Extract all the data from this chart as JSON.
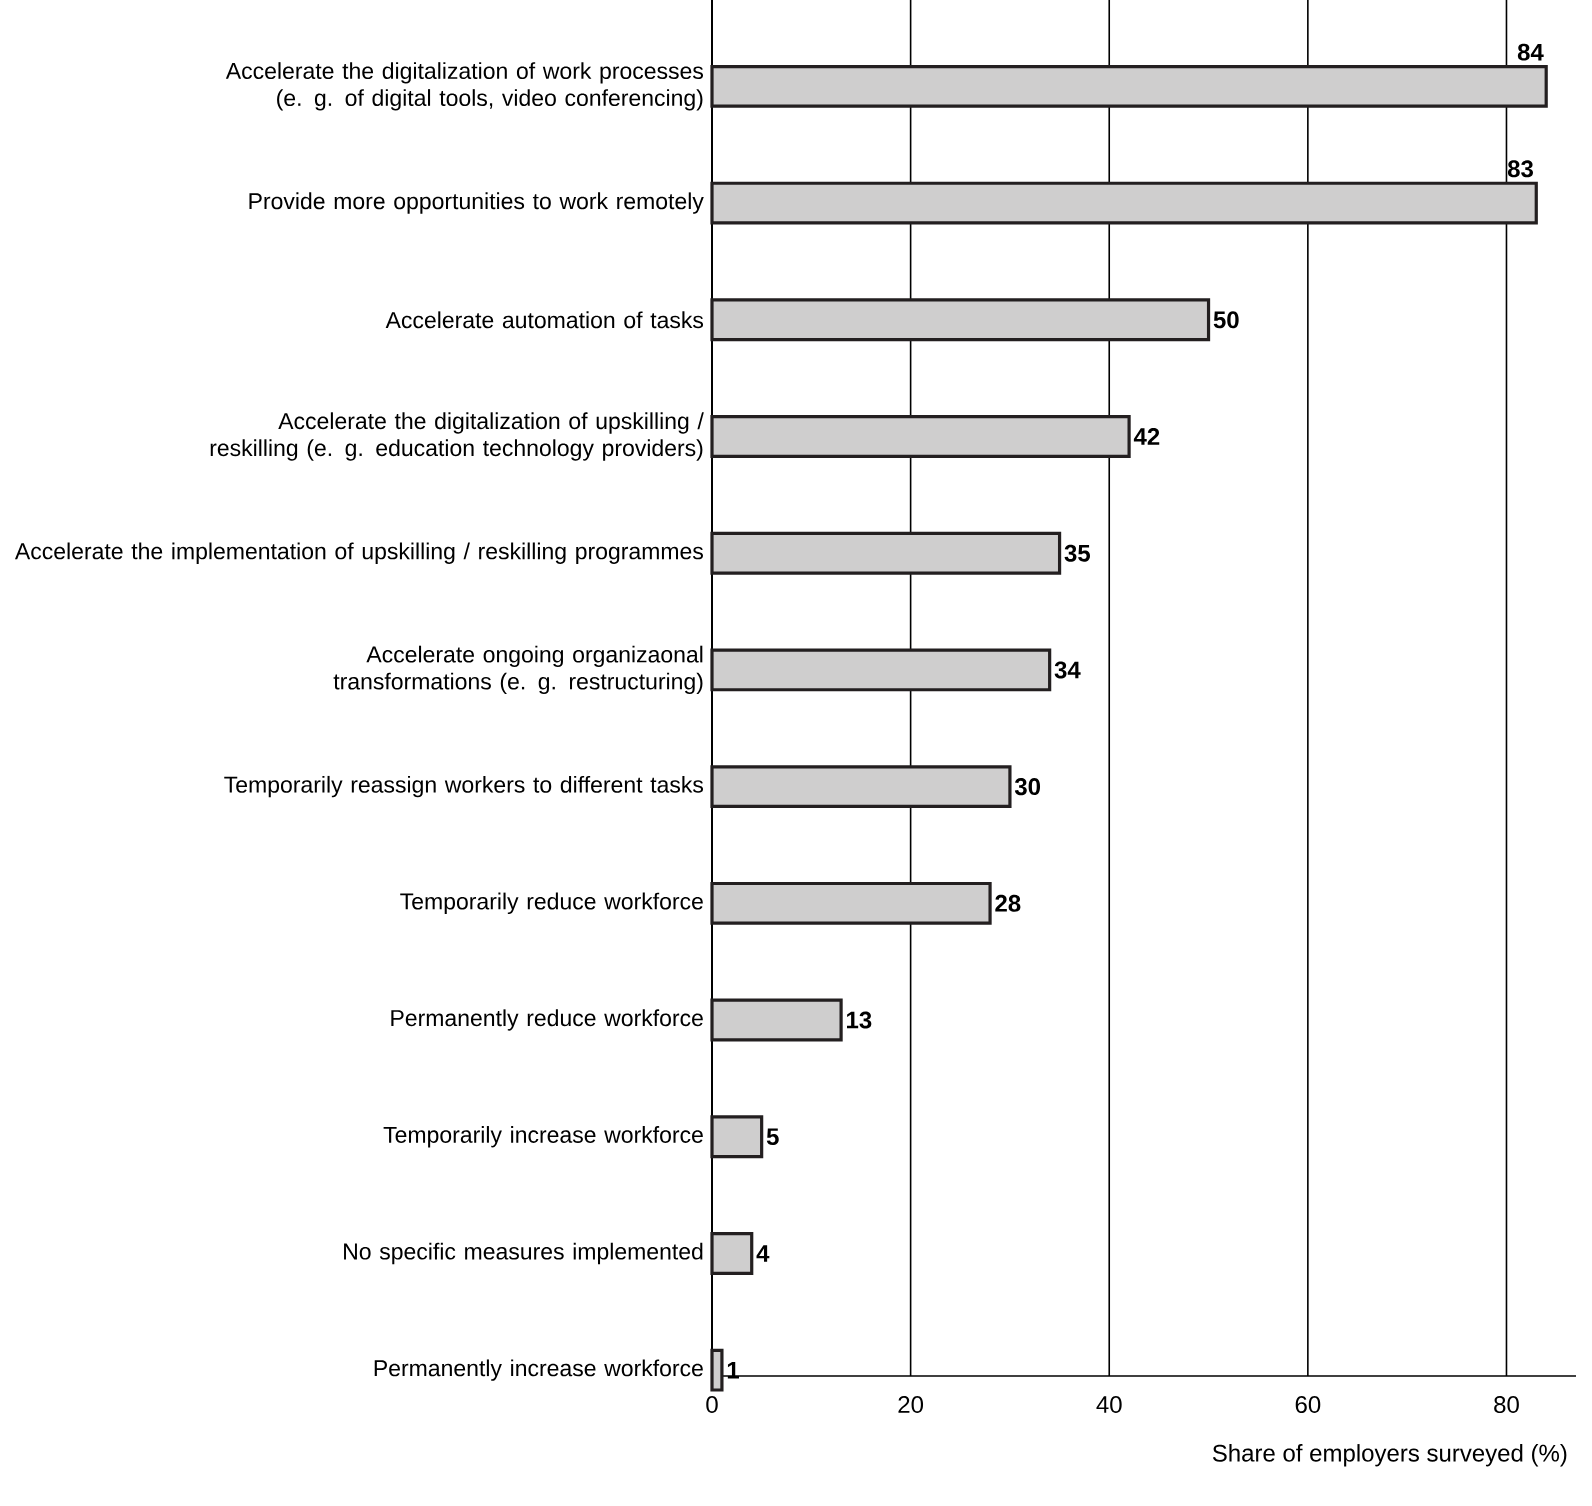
{
  "chart_data": {
    "type": "bar",
    "orientation": "horizontal",
    "categories": [
      "Accelerate the digitalization of work processes (e. g. of digital tools, video conferencing)",
      "Provide more opportunities to work remotely",
      "Accelerate automation of tasks",
      "Accelerate the digitalization of upskilling / reskilling (e. g. education technology providers)",
      "Accelerate the implementation of upskilling / reskilling programmes",
      "Accelerate ongoing organizaonal transformations (e. g. restructuring)",
      "Temporarily reassign workers to different tasks",
      "Temporarily reduce workforce",
      "Permanently reduce workforce",
      "Temporarily  increase workforce",
      "No specific measures implemented",
      "Permanently increase workforce"
    ],
    "values": [
      84,
      83,
      50,
      42,
      35,
      34,
      30,
      28,
      13,
      5,
      4,
      1
    ],
    "color": "#231f20",
    "xlabel": "Share of employers surveyed (%)",
    "xlim": [
      0,
      87
    ],
    "xticks": [
      0,
      20,
      40,
      60,
      80
    ],
    "grid": "x",
    "data_labels": true
  }
}
